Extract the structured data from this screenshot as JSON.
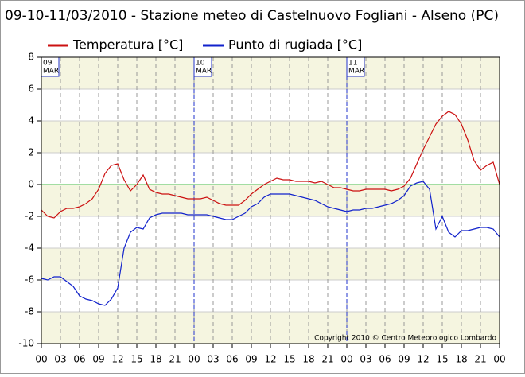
{
  "chart_data": {
    "type": "line",
    "title": "09-10-11/03/2010 - Stazione meteo di Castelnuovo Fogliani - Alseno (PC)",
    "copyright": "Copyright 2010 © Centro Meteorologico Lombardo",
    "x": [
      0,
      1,
      2,
      3,
      4,
      5,
      6,
      7,
      8,
      9,
      10,
      11,
      12,
      13,
      14,
      15,
      16,
      17,
      18,
      19,
      20,
      21,
      22,
      23,
      24,
      25,
      26,
      27,
      28,
      29,
      30,
      31,
      32,
      33,
      34,
      35,
      36,
      37,
      38,
      39,
      40,
      41,
      42,
      43,
      44,
      45,
      46,
      47,
      48,
      49,
      50,
      51,
      52,
      53,
      54,
      55,
      56,
      57,
      58,
      59,
      60,
      61,
      62,
      63,
      64,
      65,
      66,
      67,
      68,
      69,
      70,
      71,
      72
    ],
    "series": [
      {
        "name": "Temperatura [°C]",
        "color": "#cc1111",
        "values": [
          -1.6,
          -2.0,
          -2.1,
          -1.7,
          -1.5,
          -1.5,
          -1.4,
          -1.2,
          -0.9,
          -0.3,
          0.7,
          1.2,
          1.3,
          0.3,
          -0.4,
          0.0,
          0.6,
          -0.3,
          -0.5,
          -0.6,
          -0.6,
          -0.7,
          -0.8,
          -0.9,
          -0.9,
          -0.9,
          -0.8,
          -1.0,
          -1.2,
          -1.3,
          -1.3,
          -1.3,
          -1.0,
          -0.6,
          -0.3,
          0.0,
          0.2,
          0.4,
          0.3,
          0.3,
          0.2,
          0.2,
          0.2,
          0.1,
          0.2,
          0.0,
          -0.2,
          -0.2,
          -0.3,
          -0.4,
          -0.4,
          -0.3,
          -0.3,
          -0.3,
          -0.3,
          -0.4,
          -0.3,
          -0.1,
          0.4,
          1.3,
          2.2,
          3.0,
          3.8,
          4.3,
          4.6,
          4.4,
          3.8,
          2.8,
          1.5,
          0.9,
          1.2,
          1.4,
          0.0
        ]
      },
      {
        "name": "Punto di rugiada [°C]",
        "color": "#1122cc",
        "values": [
          -5.9,
          -6.0,
          -5.8,
          -5.8,
          -6.1,
          -6.4,
          -7.0,
          -7.2,
          -7.3,
          -7.5,
          -7.6,
          -7.2,
          -6.5,
          -4.0,
          -3.0,
          -2.7,
          -2.8,
          -2.1,
          -1.9,
          -1.8,
          -1.8,
          -1.8,
          -1.8,
          -1.9,
          -1.9,
          -1.9,
          -1.9,
          -2.0,
          -2.1,
          -2.2,
          -2.2,
          -2.0,
          -1.8,
          -1.4,
          -1.2,
          -0.8,
          -0.6,
          -0.6,
          -0.6,
          -0.6,
          -0.7,
          -0.8,
          -0.9,
          -1.0,
          -1.2,
          -1.4,
          -1.5,
          -1.6,
          -1.7,
          -1.6,
          -1.6,
          -1.5,
          -1.5,
          -1.4,
          -1.3,
          -1.2,
          -1.0,
          -0.7,
          -0.1,
          0.1,
          0.2,
          -0.3,
          -2.8,
          -2.0,
          -3.0,
          -3.3,
          -2.9,
          -2.9,
          -2.8,
          -2.7,
          -2.7,
          -2.8,
          -3.3
        ]
      }
    ],
    "xlim": [
      0,
      72
    ],
    "xticks": [
      {
        "value": 0,
        "label": "00"
      },
      {
        "value": 3,
        "label": "03"
      },
      {
        "value": 6,
        "label": "06"
      },
      {
        "value": 9,
        "label": "09"
      },
      {
        "value": 12,
        "label": "12"
      },
      {
        "value": 15,
        "label": "15"
      },
      {
        "value": 18,
        "label": "18"
      },
      {
        "value": 21,
        "label": "21"
      },
      {
        "value": 24,
        "label": "00"
      },
      {
        "value": 27,
        "label": "03"
      },
      {
        "value": 30,
        "label": "06"
      },
      {
        "value": 33,
        "label": "09"
      },
      {
        "value": 36,
        "label": "12"
      },
      {
        "value": 39,
        "label": "15"
      },
      {
        "value": 42,
        "label": "18"
      },
      {
        "value": 45,
        "label": "21"
      },
      {
        "value": 48,
        "label": "00"
      },
      {
        "value": 51,
        "label": "03"
      },
      {
        "value": 54,
        "label": "06"
      },
      {
        "value": 57,
        "label": "09"
      },
      {
        "value": 60,
        "label": "12"
      },
      {
        "value": 63,
        "label": "15"
      },
      {
        "value": 66,
        "label": "18"
      },
      {
        "value": 69,
        "label": "21"
      },
      {
        "value": 72,
        "label": "00"
      }
    ],
    "ylim": [
      -10,
      8
    ],
    "yticks": [
      8,
      6,
      4,
      2,
      0,
      -2,
      -4,
      -6,
      -8,
      -10
    ],
    "day_markers": [
      {
        "x": 0,
        "day": "09",
        "month": "MAR"
      },
      {
        "x": 24,
        "day": "10",
        "month": "MAR"
      },
      {
        "x": 48,
        "day": "11",
        "month": "MAR"
      }
    ],
    "band_color": "#f5f5e0",
    "zero_line_color": "#44bb44",
    "grid": true
  }
}
